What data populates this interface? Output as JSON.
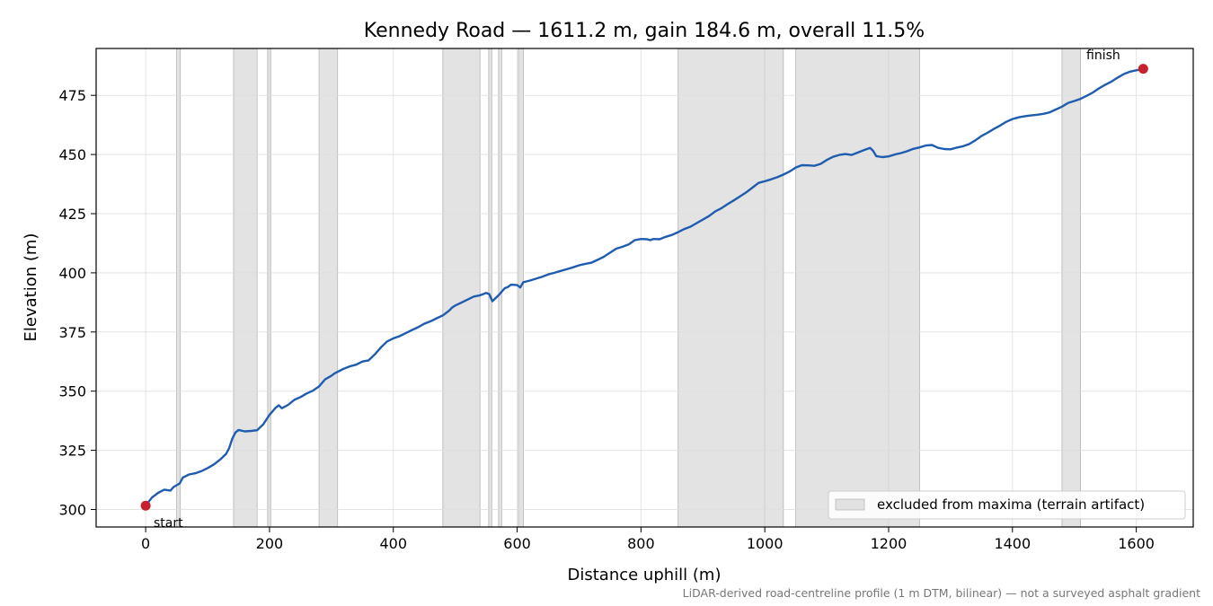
{
  "chart_data": {
    "type": "line",
    "title": "Kennedy Road — 1611.2 m, gain 184.6 m, overall 11.5%",
    "xlabel": "Distance uphill (m)",
    "ylabel": "Elevation (m)",
    "xlim": [
      -80,
      1692
    ],
    "ylim": [
      292.6,
      494.8
    ],
    "xticks": [
      0,
      200,
      400,
      600,
      800,
      1000,
      1200,
      1400,
      1600
    ],
    "yticks": [
      300,
      325,
      350,
      375,
      400,
      425,
      450,
      475
    ],
    "grid": true,
    "colors": {
      "line": "#1f5cb0",
      "marker": "#c8202d",
      "band": "#c8c8c8",
      "grid": "#dddddd",
      "footnote": "#777777"
    },
    "series": [
      {
        "x": [
          0,
          10,
          20,
          30,
          40,
          45,
          55,
          60,
          70,
          80,
          90,
          100,
          110,
          120,
          130,
          135,
          140,
          145,
          150,
          160,
          170,
          180,
          190,
          200,
          210,
          215,
          220,
          230,
          240,
          250,
          260,
          270,
          280,
          290,
          300,
          305,
          320,
          330,
          340,
          350,
          360,
          370,
          380,
          390,
          400,
          410,
          420,
          430,
          440,
          450,
          460,
          470,
          480,
          490,
          495,
          500,
          510,
          520,
          530,
          540,
          545,
          550,
          555,
          560,
          570,
          580,
          585,
          590,
          600,
          605,
          610,
          620,
          630,
          640,
          650,
          660,
          670,
          680,
          690,
          700,
          710,
          720,
          730,
          740,
          750,
          760,
          770,
          780,
          790,
          800,
          810,
          815,
          820,
          830,
          840,
          850,
          860,
          870,
          880,
          890,
          900,
          910,
          920,
          930,
          940,
          950,
          960,
          970,
          980,
          990,
          1000,
          1010,
          1020,
          1030,
          1040,
          1050,
          1060,
          1070,
          1080,
          1090,
          1100,
          1110,
          1120,
          1130,
          1140,
          1150,
          1160,
          1170,
          1175,
          1180,
          1190,
          1200,
          1210,
          1220,
          1230,
          1240,
          1250,
          1260,
          1270,
          1280,
          1290,
          1300,
          1310,
          1320,
          1330,
          1340,
          1350,
          1360,
          1370,
          1380,
          1390,
          1400,
          1410,
          1420,
          1430,
          1440,
          1450,
          1460,
          1470,
          1480,
          1490,
          1500,
          1510,
          1520,
          1530,
          1540,
          1550,
          1560,
          1570,
          1580,
          1590,
          1600,
          1611.2
        ],
        "values": [
          301.6,
          305.0,
          307.0,
          308.4,
          308.0,
          309.5,
          311.0,
          313.5,
          314.8,
          315.3,
          316.2,
          317.5,
          319.0,
          321.0,
          323.5,
          326.0,
          330.0,
          332.5,
          333.6,
          333.0,
          333.2,
          333.5,
          336.0,
          340.0,
          343.0,
          344.0,
          342.8,
          344.2,
          346.3,
          347.5,
          349.0,
          350.2,
          352.0,
          355.0,
          356.5,
          357.5,
          359.5,
          360.5,
          361.2,
          362.5,
          363.0,
          365.5,
          368.5,
          371.0,
          372.3,
          373.2,
          374.5,
          375.8,
          377.0,
          378.5,
          379.5,
          380.8,
          382.0,
          384.0,
          385.3,
          386.2,
          387.4,
          388.7,
          390.0,
          390.5,
          391.0,
          391.5,
          391.0,
          388.0,
          390.5,
          393.5,
          394.0,
          395.0,
          394.8,
          393.8,
          396.0,
          396.7,
          397.5,
          398.3,
          399.3,
          400.0,
          400.8,
          401.5,
          402.3,
          403.2,
          403.8,
          404.3,
          405.5,
          406.8,
          408.5,
          410.2,
          411.0,
          412.0,
          413.8,
          414.3,
          414.2,
          413.8,
          414.3,
          414.2,
          415.2,
          416.0,
          417.2,
          418.5,
          419.5,
          421.0,
          422.5,
          424.0,
          426.0,
          427.3,
          429.0,
          430.6,
          432.3,
          434.0,
          436.0,
          438.0,
          438.7,
          439.5,
          440.4,
          441.5,
          442.8,
          444.5,
          445.5,
          445.4,
          445.2,
          446.0,
          447.7,
          449.0,
          449.8,
          450.2,
          449.8,
          450.8,
          451.8,
          452.8,
          451.5,
          449.3,
          448.9,
          449.2,
          450.0,
          450.6,
          451.4,
          452.4,
          453.0,
          453.8,
          454.0,
          452.8,
          452.3,
          452.2,
          452.9,
          453.5,
          454.4,
          456.0,
          457.8,
          459.2,
          460.8,
          462.2,
          463.8,
          465.0,
          465.7,
          466.2,
          466.5,
          466.8,
          467.2,
          467.8,
          469.0,
          470.2,
          471.8,
          472.6,
          473.5,
          474.8,
          476.2,
          478.0,
          479.5,
          480.8,
          482.5,
          484.0,
          485.0,
          485.6,
          486.2
        ]
      }
    ],
    "excluded_bands": [
      [
        50,
        56
      ],
      [
        142,
        180
      ],
      [
        197,
        202
      ],
      [
        280,
        310
      ],
      [
        480,
        540
      ],
      [
        554,
        559
      ],
      [
        570,
        575
      ],
      [
        602,
        610
      ],
      [
        860,
        1030
      ],
      [
        1050,
        1250
      ],
      [
        1480,
        1510
      ]
    ],
    "interior_band_lines": [
      1000,
      1200
    ],
    "markers": [
      {
        "x": 0,
        "y": 301.6,
        "label": "start"
      },
      {
        "x": 1611.2,
        "y": 486.2,
        "label": "finish"
      }
    ],
    "legend": {
      "position": "lower-right",
      "entries": [
        "excluded from maxima (terrain artifact)"
      ]
    },
    "footnote": "LiDAR-derived road-centreline profile (1 m DTM, bilinear) — not a surveyed asphalt gradient"
  }
}
